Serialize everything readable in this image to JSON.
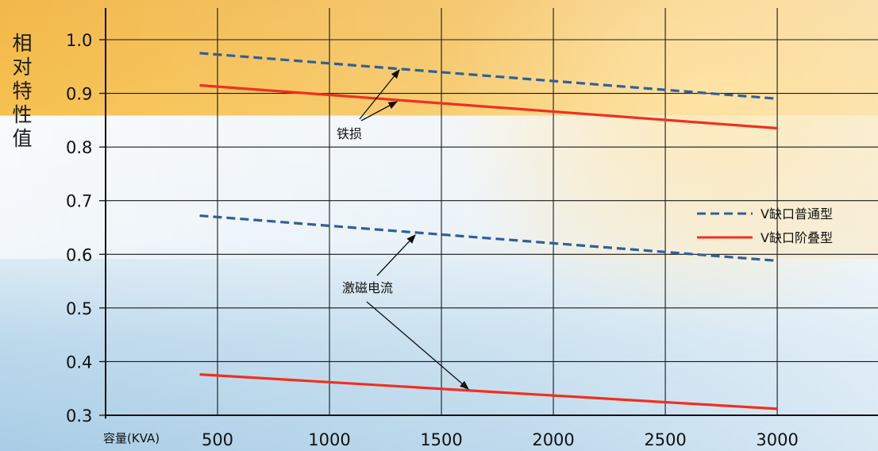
{
  "chart_data": {
    "type": "line",
    "ylabel": "相对特性值",
    "xlabel": "容量(KVA)",
    "categories": [
      500,
      1000,
      1500,
      2000,
      2500,
      3000
    ],
    "xlim": [
      0,
      3450
    ],
    "ylim": [
      0.3,
      1.0
    ],
    "yticks": [
      "0.3",
      "0.4",
      "0.5",
      "0.6",
      "0.7",
      "0.8",
      "0.9",
      "1.0"
    ],
    "xticks": [
      "500",
      "1000",
      "1500",
      "2000",
      "2500",
      "3000"
    ],
    "grid": true,
    "legend": "right",
    "series": [
      {
        "name": "V缺口普通型",
        "group": "铁损",
        "style": "dashed",
        "color": "#2f5f9e",
        "x": [
          420,
          3000
        ],
        "values": [
          0.975,
          0.89
        ]
      },
      {
        "name": "V缺口阶叠型",
        "group": "铁损",
        "style": "solid",
        "color": "#f0301f",
        "x": [
          420,
          3000
        ],
        "values": [
          0.915,
          0.835
        ]
      },
      {
        "name": "V缺口普通型",
        "group": "激磁电流",
        "style": "dashed",
        "color": "#2f5f9e",
        "x": [
          420,
          3000
        ],
        "values": [
          0.672,
          0.588
        ]
      },
      {
        "name": "V缺口阶叠型",
        "group": "激磁电流",
        "style": "solid",
        "color": "#f0301f",
        "x": [
          420,
          3000
        ],
        "values": [
          0.376,
          0.312
        ]
      }
    ],
    "annotations": [
      "铁损",
      "激磁电流"
    ]
  }
}
